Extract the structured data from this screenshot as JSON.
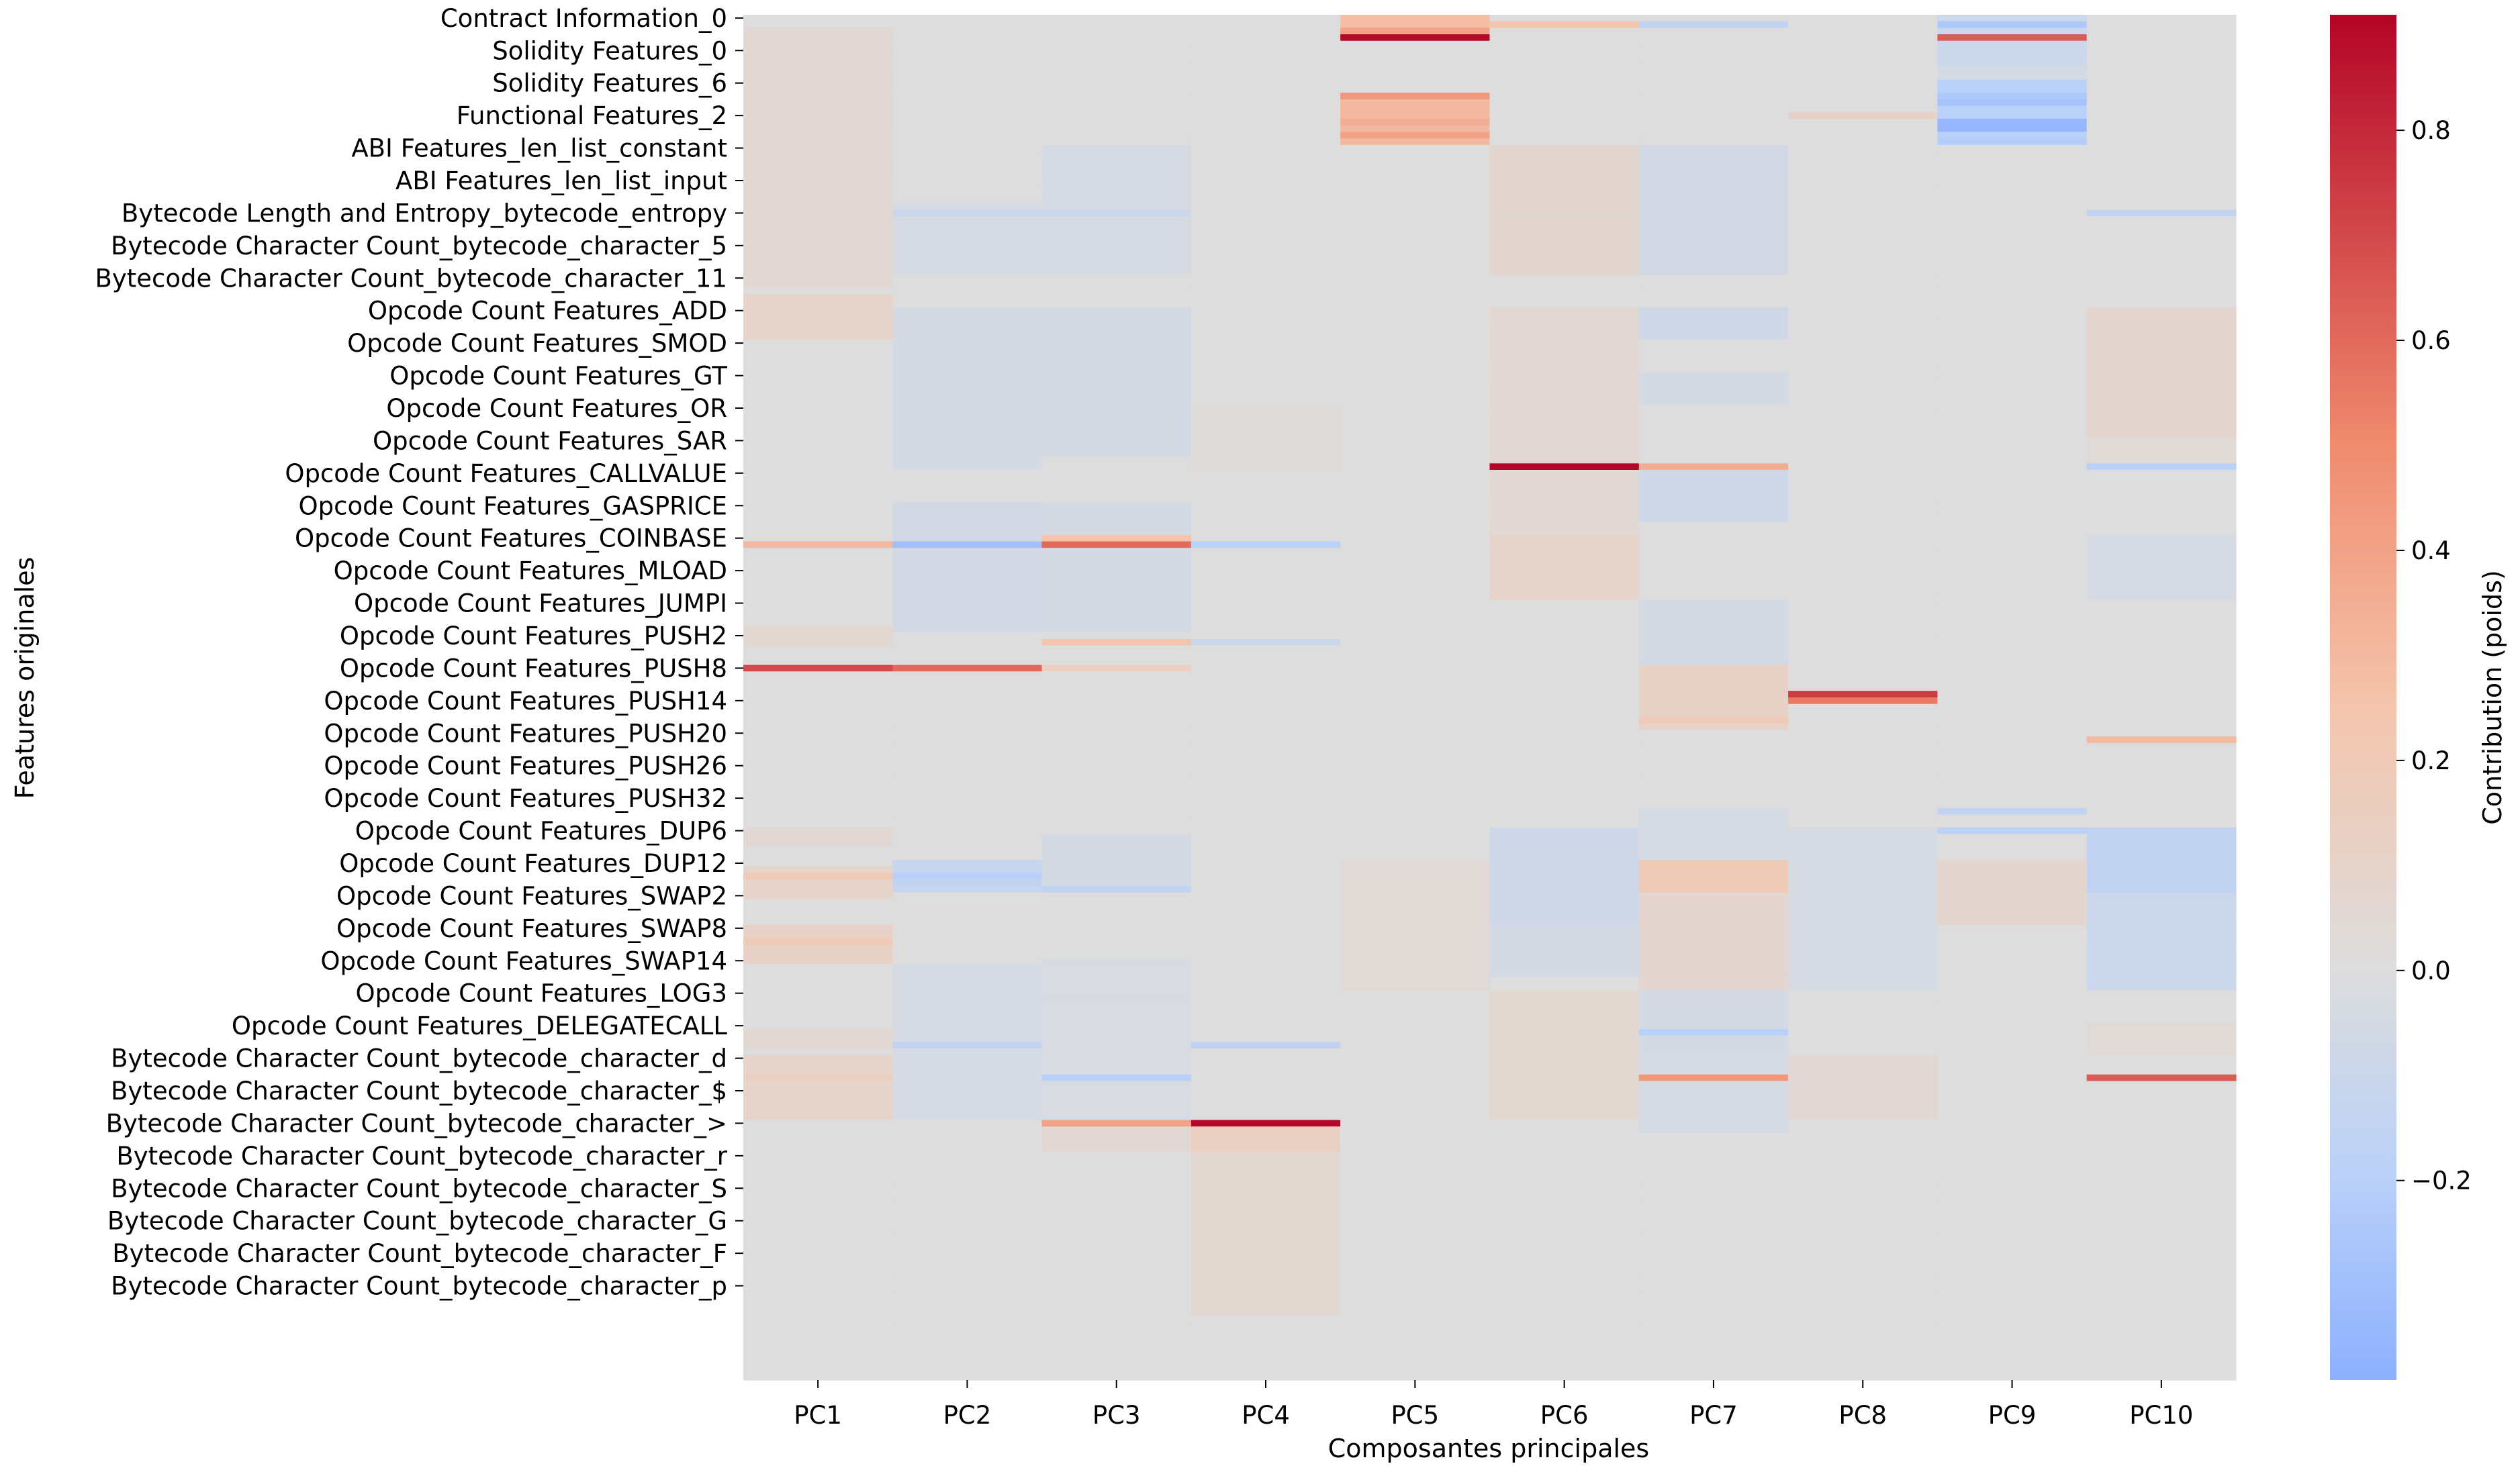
{
  "chart_data": {
    "type": "heatmap",
    "title": "",
    "xlabel": "Composantes principales",
    "ylabel": "Features originales",
    "columns": [
      "PC1",
      "PC2",
      "PC3",
      "PC4",
      "PC5",
      "PC6",
      "PC7",
      "PC8",
      "PC9",
      "PC10"
    ],
    "row_count": 210,
    "row_tick_interval": 5,
    "row_labels_shown": [
      "Contract Information_0",
      "Solidity Features_0",
      "Solidity Features_6",
      "Functional Features_2",
      "ABI Features_len_list_constant",
      "ABI Features_len_list_input",
      "Bytecode Length and Entropy_bytecode_entropy",
      "Bytecode Character Count_bytecode_character_5",
      "Bytecode Character Count_bytecode_character_11",
      "Opcode Count Features_ADD",
      "Opcode Count Features_SMOD",
      "Opcode Count Features_GT",
      "Opcode Count Features_OR",
      "Opcode Count Features_SAR",
      "Opcode Count Features_CALLVALUE",
      "Opcode Count Features_GASPRICE",
      "Opcode Count Features_COINBASE",
      "Opcode Count Features_MLOAD",
      "Opcode Count Features_JUMPI",
      "Opcode Count Features_PUSH2",
      "Opcode Count Features_PUSH8",
      "Opcode Count Features_PUSH14",
      "Opcode Count Features_PUSH20",
      "Opcode Count Features_PUSH26",
      "Opcode Count Features_PUSH32",
      "Opcode Count Features_DUP6",
      "Opcode Count Features_DUP12",
      "Opcode Count Features_SWAP2",
      "Opcode Count Features_SWAP8",
      "Opcode Count Features_SWAP14",
      "Opcode Count Features_LOG3",
      "Opcode Count Features_DELEGATECALL",
      "Bytecode Character Count_bytecode_character_d",
      "Bytecode Character Count_bytecode_character_$",
      "Bytecode Character Count_bytecode_character_>",
      "Bytecode Character Count_bytecode_character_r",
      "Bytecode Character Count_bytecode_character_S",
      "Bytecode Character Count_bytecode_character_G",
      "Bytecode Character Count_bytecode_character_F",
      "Bytecode Character Count_bytecode_character_p"
    ],
    "band_values": [
      {
        "column": "PC1",
        "bands": [
          [
            2,
            42,
            0.05
          ],
          [
            43,
            50,
            0.1
          ],
          [
            94,
            97,
            0.06
          ],
          [
            125,
            128,
            0.05
          ],
          [
            131,
            136,
            0.1
          ],
          [
            140,
            146,
            0.12
          ],
          [
            156,
            159,
            0.05
          ],
          [
            160,
            170,
            0.1
          ]
        ]
      },
      {
        "column": "PC2",
        "bands": [
          [
            29,
            40,
            -0.04
          ],
          [
            45,
            70,
            -0.05
          ],
          [
            75,
            95,
            -0.06
          ],
          [
            130,
            135,
            -0.12
          ],
          [
            146,
            170,
            -0.04
          ]
        ]
      },
      {
        "column": "PC3",
        "bands": [
          [
            20,
            40,
            -0.04
          ],
          [
            45,
            68,
            -0.05
          ],
          [
            75,
            95,
            -0.05
          ],
          [
            126,
            135,
            -0.05
          ],
          [
            145,
            170,
            -0.03
          ],
          [
            170,
            175,
            0.05
          ]
        ]
      },
      {
        "column": "PC4",
        "bands": [
          [
            60,
            70,
            0.02
          ],
          [
            170,
            175,
            0.14
          ],
          [
            175,
            200,
            0.06
          ]
        ]
      },
      {
        "column": "PC5",
        "bands": [
          [
            0,
            4,
            0.28
          ],
          [
            12,
            20,
            0.3
          ],
          [
            17,
            19,
            0.4
          ],
          [
            130,
            150,
            0.04
          ]
        ]
      },
      {
        "column": "PC6",
        "bands": [
          [
            20,
            40,
            0.07
          ],
          [
            45,
            80,
            0.05
          ],
          [
            80,
            90,
            0.1
          ],
          [
            125,
            140,
            -0.08
          ],
          [
            140,
            148,
            -0.05
          ],
          [
            150,
            170,
            0.06
          ]
        ]
      },
      {
        "column": "PC7",
        "bands": [
          [
            20,
            40,
            -0.06
          ],
          [
            45,
            50,
            -0.07
          ],
          [
            55,
            60,
            -0.05
          ],
          [
            70,
            78,
            -0.08
          ],
          [
            90,
            100,
            -0.05
          ],
          [
            100,
            110,
            0.12
          ],
          [
            122,
            130,
            -0.04
          ],
          [
            130,
            135,
            0.2
          ],
          [
            135,
            150,
            0.08
          ],
          [
            150,
            160,
            -0.05
          ],
          [
            160,
            172,
            -0.04
          ]
        ]
      },
      {
        "column": "PC8",
        "bands": [
          [
            125,
            150,
            -0.04
          ],
          [
            160,
            170,
            0.05
          ]
        ]
      },
      {
        "column": "PC9",
        "bands": [
          [
            0,
            8,
            -0.1
          ],
          [
            10,
            20,
            -0.2
          ],
          [
            8,
            10,
            -0.05
          ],
          [
            130,
            140,
            0.08
          ]
        ]
      },
      {
        "column": "PC10",
        "bands": [
          [
            45,
            65,
            0.08
          ],
          [
            65,
            70,
            0.03
          ],
          [
            80,
            90,
            -0.04
          ],
          [
            125,
            135,
            -0.15
          ],
          [
            135,
            150,
            -0.1
          ],
          [
            155,
            160,
            0.03
          ]
        ]
      }
    ],
    "highlights": [
      {
        "row": 3,
        "column": "PC5",
        "value": 0.9
      },
      {
        "row": 2,
        "column": "PC5",
        "value": 0.4
      },
      {
        "row": 1,
        "column": "PC6",
        "value": 0.25
      },
      {
        "row": 1,
        "column": "PC7",
        "value": -0.15
      },
      {
        "row": 3,
        "column": "PC9",
        "value": 0.65
      },
      {
        "row": 1,
        "column": "PC9",
        "value": -0.25
      },
      {
        "row": 12,
        "column": "PC5",
        "value": 0.45
      },
      {
        "row": 16,
        "column": "PC5",
        "value": 0.35
      },
      {
        "row": 17,
        "column": "PC5",
        "value": 0.3
      },
      {
        "row": 12,
        "column": "PC9",
        "value": -0.25
      },
      {
        "row": 13,
        "column": "PC9",
        "value": -0.28
      },
      {
        "row": 16,
        "column": "PC9",
        "value": -0.35
      },
      {
        "row": 17,
        "column": "PC9",
        "value": -0.35
      },
      {
        "row": 19,
        "column": "PC9",
        "value": -0.22
      },
      {
        "row": 15,
        "column": "PC8",
        "value": 0.12
      },
      {
        "row": 30,
        "column": "PC2",
        "value": -0.1
      },
      {
        "row": 30,
        "column": "PC3",
        "value": -0.1
      },
      {
        "row": 30,
        "column": "PC10",
        "value": -0.15
      },
      {
        "row": 69,
        "column": "PC6",
        "value": 0.9
      },
      {
        "row": 69,
        "column": "PC7",
        "value": 0.35
      },
      {
        "row": 69,
        "column": "PC10",
        "value": -0.2
      },
      {
        "row": 81,
        "column": "PC1",
        "value": 0.3
      },
      {
        "row": 81,
        "column": "PC2",
        "value": -0.3
      },
      {
        "row": 81,
        "column": "PC3",
        "value": 0.6
      },
      {
        "row": 81,
        "column": "PC4",
        "value": -0.2
      },
      {
        "row": 80,
        "column": "PC3",
        "value": 0.25
      },
      {
        "row": 96,
        "column": "PC3",
        "value": 0.25
      },
      {
        "row": 96,
        "column": "PC4",
        "value": -0.1
      },
      {
        "row": 100,
        "column": "PC1",
        "value": 0.7
      },
      {
        "row": 100,
        "column": "PC2",
        "value": 0.6
      },
      {
        "row": 100,
        "column": "PC3",
        "value": 0.15
      },
      {
        "row": 104,
        "column": "PC8",
        "value": 0.75
      },
      {
        "row": 105,
        "column": "PC8",
        "value": 0.55
      },
      {
        "row": 111,
        "column": "PC10",
        "value": 0.3
      },
      {
        "row": 132,
        "column": "PC2",
        "value": -0.2
      },
      {
        "row": 133,
        "column": "PC2",
        "value": -0.15
      },
      {
        "row": 134,
        "column": "PC3",
        "value": -0.15
      },
      {
        "row": 156,
        "column": "PC7",
        "value": -0.2
      },
      {
        "row": 158,
        "column": "PC2",
        "value": -0.15
      },
      {
        "row": 158,
        "column": "PC4",
        "value": -0.15
      },
      {
        "row": 163,
        "column": "PC3",
        "value": -0.2
      },
      {
        "row": 163,
        "column": "PC7",
        "value": 0.45
      },
      {
        "row": 163,
        "column": "PC10",
        "value": 0.65
      },
      {
        "row": 163,
        "column": "PC1",
        "value": 0.15
      },
      {
        "row": 170,
        "column": "PC3",
        "value": 0.4
      },
      {
        "row": 170,
        "column": "PC4",
        "value": 0.9
      },
      {
        "row": 142,
        "column": "PC1",
        "value": 0.2
      },
      {
        "row": 132,
        "column": "PC1",
        "value": 0.2
      },
      {
        "row": 122,
        "column": "PC9",
        "value": -0.15
      },
      {
        "row": 125,
        "column": "PC9",
        "value": -0.18
      },
      {
        "row": 125,
        "column": "PC10",
        "value": -0.15
      },
      {
        "row": 108,
        "column": "PC7",
        "value": 0.2
      }
    ],
    "colorbar": {
      "label": "Contribution (poids)",
      "vmin": -0.39,
      "vmax": 0.91,
      "ticks": [
        {
          "value": 0.8,
          "label": "0.8"
        },
        {
          "value": 0.6,
          "label": "0.6"
        },
        {
          "value": 0.4,
          "label": "0.4"
        },
        {
          "value": 0.2,
          "label": "0.2"
        },
        {
          "value": 0.0,
          "label": "0.0"
        },
        {
          "value": -0.2,
          "label": "−0.2"
        }
      ],
      "colors": {
        "neg": "#8db0fe",
        "neg_mid": "#b9d0f9",
        "mid": "#dddddd",
        "pos_mid": "#f4c5ad",
        "pos": "#f08b6e",
        "pos_high": "#b40426"
      }
    }
  }
}
